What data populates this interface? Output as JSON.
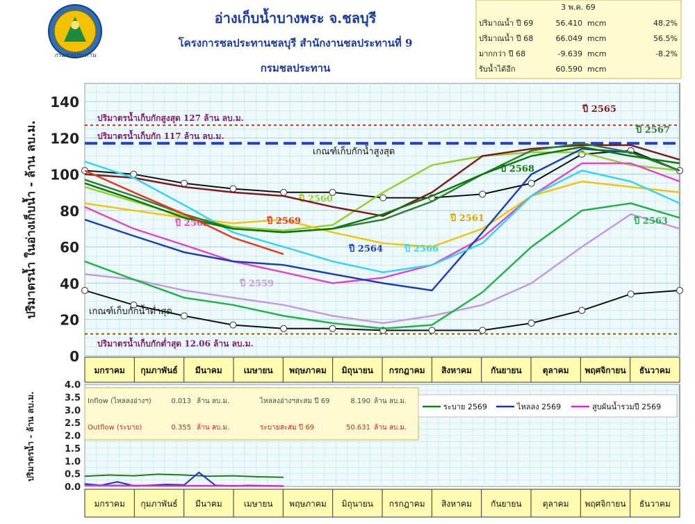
{
  "header": {
    "title": "อ่างเก็บน้ำบางพระ จ.ชลบุรี",
    "subtitle": "โครงการชลประทานชลบุรี สำนักงานชลประทานที่ 9",
    "org": "กรมชลประทาน",
    "logo_text": "กรมชลประทาน"
  },
  "summary": {
    "date": "3 พ.ค. 69",
    "rows": [
      {
        "label": "ปริมาณน้ำ ปี  69",
        "value": "56.410",
        "unit": "mcm",
        "pct": "48.2%"
      },
      {
        "label": "ปริมาณน้ำ ปี  68",
        "value": "66.049",
        "unit": "mcm",
        "pct": "56.5%"
      },
      {
        "label": "มากกว่า ปี  68",
        "value": "-9.639",
        "unit": "mcm",
        "pct": "-8.2%"
      },
      {
        "label": "รับน้ำได้อีก",
        "value": "60.590",
        "unit": "mcm",
        "pct": ""
      }
    ]
  },
  "months": [
    "มกราคม",
    "กุมภาพันธ์",
    "มีนาคม",
    "เมษายน",
    "พฤษภาคม",
    "มิถุนายน",
    "กรกฎาคม",
    "สิงหาคม",
    "กันยายน",
    "ตุลาคม",
    "พฤศจิกายน",
    "ธันวาคม"
  ],
  "chart_data": [
    {
      "type": "line",
      "ylabel": "ปริมาตรน้ำ ในอ่างเก็บน้ำ - ล้าน ลบ.ม.",
      "ylim": [
        0,
        150
      ],
      "yticks": [
        "0",
        "20",
        "40",
        "60",
        "80",
        "100",
        "120",
        "140"
      ],
      "xlim": [
        0,
        365
      ],
      "grid": true,
      "reference_lines": [
        {
          "label": "ปริมาตรน้ำเก็บกักสูงสุด 127 ล้าน ลบ.ม.",
          "y": 127,
          "color": "#c0392b"
        },
        {
          "label": "ปริมาตรน้ำเก็บกัก  117 ล้าน ลบ.ม.",
          "y": 117,
          "color": "#1f3fcf"
        },
        {
          "label": "ปริมาตรน้ำเก็บกักต่ำสุด  12.06 ล้าน ลบ.ม.",
          "y": 12.06,
          "color": "#8a5a00"
        }
      ],
      "rule_curves": [
        {
          "name": "เกณฑ์เก็บกักน้ำสูงสุด",
          "color": "#111111",
          "x": [
            0,
            30,
            61,
            91,
            122,
            152,
            183,
            213,
            244,
            274,
            305,
            335,
            365
          ],
          "y": [
            102,
            100,
            95,
            92,
            90,
            90,
            87,
            87,
            89,
            95,
            111,
            113,
            102
          ]
        },
        {
          "name": "เกณฑ์เก็บกักน้ำต่ำสุด",
          "color": "#111111",
          "x": [
            0,
            30,
            61,
            91,
            122,
            152,
            183,
            213,
            244,
            274,
            305,
            335,
            365
          ],
          "y": [
            36,
            28,
            22,
            17,
            15,
            15,
            14,
            14,
            14,
            18,
            25,
            34,
            36
          ]
        }
      ],
      "series": [
        {
          "name": "ปี 2559",
          "color": "#c39be0",
          "x": [
            0,
            30,
            61,
            91,
            122,
            152,
            183,
            213,
            244,
            274,
            305,
            335,
            365
          ],
          "y": [
            45,
            42,
            36,
            32,
            28,
            22,
            18,
            22,
            28,
            40,
            60,
            78,
            70
          ]
        },
        {
          "name": "ปี 2560",
          "color": "#9acd32",
          "x": [
            0,
            30,
            61,
            91,
            122,
            152,
            183,
            213,
            244,
            274,
            305,
            335,
            365
          ],
          "y": [
            93,
            85,
            77,
            71,
            69,
            72,
            90,
            105,
            110,
            112,
            112,
            105,
            102
          ]
        },
        {
          "name": "ปี 2561",
          "color": "#f1c40f",
          "x": [
            0,
            30,
            61,
            91,
            122,
            152,
            183,
            213,
            244,
            274,
            305,
            335,
            365
          ],
          "y": [
            84,
            80,
            76,
            73,
            75,
            68,
            62,
            60,
            70,
            88,
            96,
            93,
            90
          ]
        },
        {
          "name": "ปี 2562",
          "color": "#e048c8",
          "x": [
            0,
            30,
            61,
            91,
            122,
            152,
            183,
            213,
            244,
            274,
            305,
            335,
            365
          ],
          "y": [
            82,
            70,
            61,
            52,
            46,
            40,
            43,
            50,
            65,
            88,
            106,
            106,
            96
          ]
        },
        {
          "name": "ปี 2563",
          "color": "#22b14c",
          "x": [
            0,
            30,
            61,
            91,
            122,
            152,
            183,
            213,
            244,
            274,
            305,
            335,
            365
          ],
          "y": [
            52,
            42,
            32,
            28,
            22,
            18,
            15,
            17,
            35,
            60,
            80,
            84,
            76
          ]
        },
        {
          "name": "ปี 2564",
          "color": "#1f3fb0",
          "x": [
            0,
            30,
            61,
            91,
            122,
            152,
            183,
            213,
            244,
            274,
            305,
            335,
            365
          ],
          "y": [
            75,
            66,
            57,
            52,
            50,
            45,
            40,
            36,
            68,
            100,
            114,
            112,
            102
          ]
        },
        {
          "name": "ปี 2565",
          "color": "#7b1d1d",
          "x": [
            0,
            30,
            61,
            91,
            122,
            152,
            183,
            213,
            244,
            274,
            305,
            335,
            365
          ],
          "y": [
            100,
            98,
            93,
            90,
            88,
            82,
            77,
            90,
            110,
            114,
            116,
            116,
            108
          ]
        },
        {
          "name": "ปี 2566",
          "color": "#33d6f2",
          "x": [
            0,
            30,
            61,
            91,
            122,
            152,
            183,
            213,
            244,
            274,
            305,
            335,
            365
          ],
          "y": [
            107,
            98,
            83,
            68,
            60,
            52,
            46,
            50,
            62,
            88,
            102,
            96,
            84
          ]
        },
        {
          "name": "ปี 2567",
          "color": "#2e7d32",
          "x": [
            0,
            30,
            61,
            91,
            122,
            152,
            183,
            213,
            244,
            274,
            305,
            335,
            365
          ],
          "y": [
            97,
            88,
            78,
            70,
            68,
            70,
            75,
            85,
            100,
            113,
            117,
            112,
            102
          ]
        },
        {
          "name": "ปี 2568",
          "color": "#0a7a0a",
          "x": [
            0,
            30,
            61,
            91,
            122,
            152,
            183,
            213,
            244,
            274,
            305,
            335,
            365
          ],
          "y": [
            95,
            86,
            76,
            70,
            68,
            70,
            78,
            88,
            100,
            110,
            115,
            110,
            106
          ]
        },
        {
          "name": "ปี 2569",
          "color": "#e53920",
          "x": [
            0,
            30,
            61,
            91,
            122
          ],
          "y": [
            102,
            90,
            78,
            65,
            56
          ]
        }
      ]
    },
    {
      "type": "line",
      "ylabel": "ปริมาตรน้ำ - ล้าน ลบ.ม.",
      "ylim": [
        0,
        4
      ],
      "yticks": [
        "0.0",
        "0.5",
        "1.0",
        "1.5",
        "2.0",
        "2.5",
        "3.0",
        "3.5",
        "4.0"
      ],
      "xlim": [
        0,
        365
      ],
      "grid": true,
      "legend": [
        {
          "name": "ระบาย 2569",
          "color": "#1a7f1a"
        },
        {
          "name": "ไหลลง 2569",
          "color": "#1b2ec0"
        },
        {
          "name": "สูบผันน้ำรวมปี 2569",
          "color": "#e020d8"
        }
      ],
      "info": [
        {
          "label": "Inflow (ไหลลงอ่างฯ)",
          "value": "0.013",
          "unit": "ล้าน ลบ.ม.",
          "cum_label": "ไหลลงอ่างฯสะสม ปี 69",
          "cum_value": "8.190",
          "cum_unit": "ล้าน ลบ.ม.",
          "color": "#4a4a4a"
        },
        {
          "label": "Outflow (ระบาย)",
          "value": "0.355",
          "unit": "ล้าน ลบ.ม.",
          "cum_label": "ระบายสะสม ปี 69",
          "cum_value": "50.631",
          "cum_unit": "ล้าน ลบ.ม.",
          "color": "#d42020"
        }
      ],
      "series": [
        {
          "name": "ระบาย 2569",
          "color": "#1a7f1a",
          "x": [
            0,
            15,
            30,
            45,
            61,
            76,
            91,
            106,
            122
          ],
          "y": [
            0.4,
            0.45,
            0.42,
            0.48,
            0.45,
            0.4,
            0.42,
            0.38,
            0.36
          ]
        },
        {
          "name": "ไหลลง 2569",
          "color": "#1b2ec0",
          "x": [
            0,
            10,
            20,
            30,
            40,
            50,
            61,
            70,
            80,
            91,
            100,
            110,
            122
          ],
          "y": [
            0.1,
            0.05,
            0.18,
            0.03,
            0.05,
            0.08,
            0.06,
            0.55,
            0.05,
            0.02,
            0.04,
            0.03,
            0.01
          ]
        },
        {
          "name": "สูบผันน้ำรวมปี 2569",
          "color": "#e020d8",
          "x": [
            0,
            30,
            61,
            91,
            122
          ],
          "y": [
            0.05,
            0.04,
            0.03,
            0.03,
            0.02
          ]
        }
      ]
    }
  ]
}
